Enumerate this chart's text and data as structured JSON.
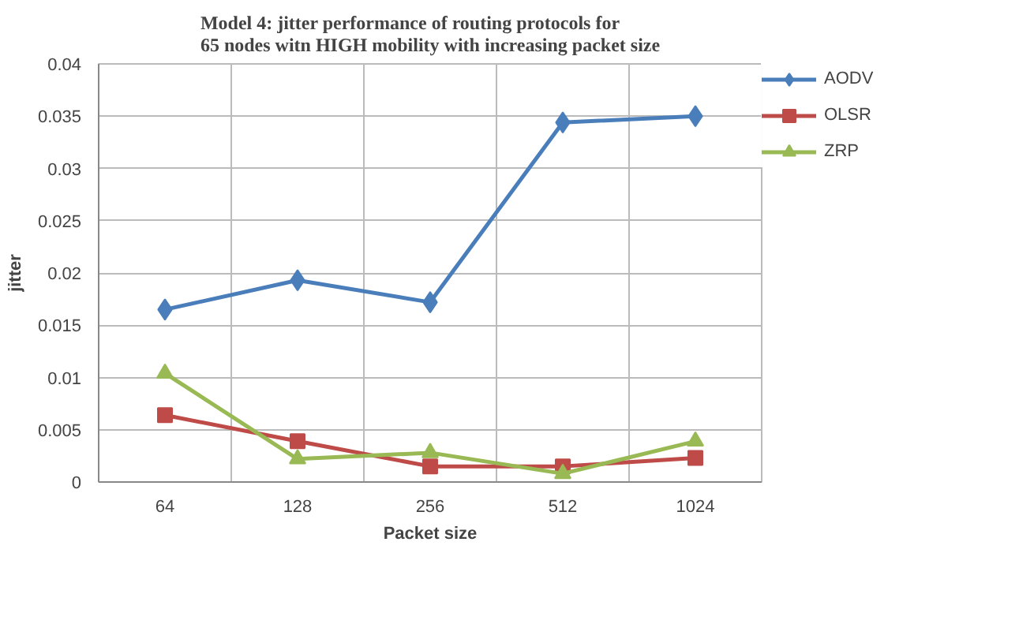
{
  "chart_data": {
    "type": "line",
    "title": "Model 4: jitter performance of routing protocols for\n65 nodes witn HIGH mobility with increasing packet size",
    "xlabel": "Packet size",
    "ylabel": "jitter",
    "categories": [
      "64",
      "128",
      "256",
      "512",
      "1024"
    ],
    "series": [
      {
        "name": "AODV",
        "color": "#4a7ebb",
        "marker": "diamond",
        "values": [
          0.0165,
          0.0193,
          0.0172,
          0.0344,
          0.035
        ]
      },
      {
        "name": "OLSR",
        "color": "#be4b48",
        "marker": "square",
        "values": [
          0.0064,
          0.0039,
          0.0015,
          0.0015,
          0.0023
        ]
      },
      {
        "name": "ZRP",
        "color": "#98b954",
        "marker": "triangle",
        "values": [
          0.0104,
          0.0022,
          0.0028,
          0.0008,
          0.0039
        ]
      }
    ],
    "ylim": [
      0,
      0.04
    ],
    "yticks": [
      0,
      {
        "value": 0.005,
        "label": "0.005"
      },
      {
        "value": 0.01,
        "label": "0.01"
      },
      {
        "value": 0.015,
        "label": "0.015"
      },
      {
        "value": 0.02,
        "label": "0.02"
      },
      {
        "value": 0.025,
        "label": "0.025"
      },
      {
        "value": 0.03,
        "label": "0.03"
      },
      {
        "value": 0.035,
        "label": "0.035"
      },
      {
        "value": 0.04,
        "label": "0.04"
      }
    ],
    "grid": true,
    "legend": "right",
    "line_style": "solid"
  }
}
